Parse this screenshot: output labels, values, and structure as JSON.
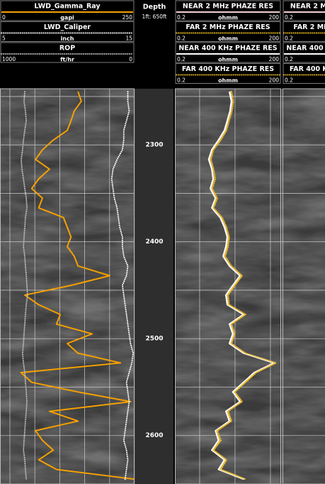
{
  "chart_data": [
    {
      "type": "line",
      "series": [
        {
          "name": "LWD_Gamma_Ray",
          "unit": "gapi",
          "xlim": [
            0,
            250
          ],
          "color": "#f5a000",
          "style": "solid",
          "values": [
            145,
            151,
            138,
            132,
            125,
            99,
            79,
            66,
            92,
            72,
            59,
            79,
            72,
            118,
            125,
            132,
            125,
            138,
            145,
            204,
            132,
            46,
            72,
            112,
            105,
            171,
            125,
            145,
            224,
            39,
            59,
            145,
            243,
            92,
            145,
            66,
            79,
            99,
            72,
            105,
            250
          ]
        },
        {
          "name": "LWD_Caliper",
          "unit": "inch",
          "xlim": [
            5,
            15
          ],
          "color": "#ffffff",
          "style": "dotted",
          "values": [
            14.5,
            14.5,
            14.6,
            14.4,
            14.2,
            14.2,
            14.1,
            13.7,
            13.4,
            13.3,
            13.4,
            13.5,
            13.7,
            13.8,
            13.9,
            14.1,
            14.1,
            14.2,
            14.5,
            14.4,
            14.1,
            14.2,
            14.3,
            14.4,
            14.5,
            14.6,
            14.7,
            14.9,
            14.8,
            14.6,
            14.4,
            14.5,
            14.6,
            14.5,
            14.4,
            14.3,
            14.2,
            14.4,
            14.5,
            14.4,
            14.3
          ]
        },
        {
          "name": "ROP",
          "unit": "ft/hr",
          "xlim": [
            1000,
            0
          ],
          "color": "#bfbfbf",
          "style": "dotted",
          "values": [
            816,
            821,
            811,
            805,
            816,
            826,
            832,
            842,
            837,
            826,
            816,
            805,
            800,
            811,
            816,
            821,
            826,
            816,
            811,
            805,
            800,
            795,
            805,
            811,
            816,
            821,
            826,
            832,
            826,
            816,
            811,
            805,
            800,
            805,
            811,
            816,
            821,
            826,
            816,
            811,
            805
          ]
        }
      ],
      "xticks": [
        0,
        50,
        100,
        150,
        200,
        250
      ]
    },
    {
      "type": "depth-axis",
      "title": "Depth",
      "subtitle": "1ft: 650ft",
      "ylim": [
        2242,
        2650
      ],
      "yticks": [
        2300,
        2400,
        2500,
        2600
      ],
      "minor_yticks": [
        2250,
        2350,
        2450,
        2550
      ],
      "depths": [
        2245,
        2255,
        2265,
        2275,
        2285,
        2295,
        2305,
        2315,
        2325,
        2335,
        2345,
        2355,
        2365,
        2375,
        2385,
        2395,
        2405,
        2415,
        2425,
        2435,
        2445,
        2455,
        2465,
        2475,
        2485,
        2495,
        2505,
        2515,
        2525,
        2535,
        2545,
        2555,
        2565,
        2575,
        2585,
        2595,
        2605,
        2615,
        2625,
        2635,
        2645
      ]
    },
    {
      "type": "line",
      "log_x": true,
      "xlim": [
        0.2,
        200
      ],
      "xgrid": [
        1,
        10,
        100
      ],
      "series": [
        {
          "name": "NEAR 2 MHz PHAZE RES",
          "unit": "ohmm",
          "color": "#f2d0d0",
          "style": "solid",
          "values": [
            7.3,
            8.3,
            7.6,
            6.3,
            5.3,
            3.6,
            2.3,
            1.9,
            2.3,
            2.5,
            2.1,
            2.9,
            2.3,
            4.0,
            5.3,
            6.3,
            5.8,
            4.8,
            7.3,
            14.5,
            9.1,
            5.8,
            6.3,
            18.2,
            7.3,
            9.1,
            7.3,
            18.2,
            132,
            36.4,
            18.2,
            9.1,
            14.5,
            5.8,
            7.3,
            2.9,
            3.6,
            2.3,
            5.3,
            3.6,
            18.2
          ]
        },
        {
          "name": "FAR 2 MHz PHAZE RES",
          "unit": "ohmm",
          "color": "#f0c020",
          "style": "dotted",
          "values": [
            8.0,
            9.1,
            8.3,
            6.9,
            5.8,
            4.0,
            2.5,
            2.1,
            2.5,
            2.8,
            2.3,
            3.2,
            2.5,
            4.4,
            5.8,
            6.9,
            6.4,
            5.3,
            8.0,
            16.0,
            10.0,
            6.4,
            6.9,
            20.0,
            8.0,
            10.0,
            8.0,
            20.0,
            145,
            40.0,
            20.0,
            10.0,
            16.0,
            6.4,
            8.0,
            3.2,
            4.0,
            2.5,
            5.8,
            4.0,
            20.0
          ]
        },
        {
          "name": "NEAR 400 KHz PHAZE RES",
          "unit": "ohmm",
          "color": "#ffffff",
          "style": "solid",
          "values": [
            6.9,
            7.9,
            7.2,
            6.0,
            5.0,
            3.4,
            2.2,
            1.8,
            2.2,
            2.4,
            2.0,
            2.8,
            2.2,
            3.8,
            5.0,
            6.0,
            5.5,
            4.6,
            6.9,
            13.8,
            8.6,
            5.5,
            6.0,
            17.3,
            6.9,
            8.6,
            6.9,
            17.3,
            125,
            34.6,
            17.3,
            8.6,
            13.8,
            5.5,
            6.9,
            2.8,
            3.4,
            2.2,
            5.0,
            3.4,
            17.3
          ]
        },
        {
          "name": "FAR 400 KHz PHAZE RES",
          "unit": "ohmm",
          "color": "#e8b830",
          "style": "dotted",
          "values": [
            7.7,
            8.7,
            8.0,
            6.6,
            5.6,
            3.8,
            2.4,
            2.0,
            2.4,
            2.6,
            2.2,
            3.0,
            2.4,
            4.2,
            5.6,
            6.6,
            6.1,
            5.0,
            7.7,
            15.2,
            9.6,
            6.1,
            6.6,
            19.1,
            7.7,
            9.6,
            7.7,
            19.1,
            139,
            38.2,
            19.1,
            9.6,
            15.2,
            6.1,
            7.7,
            3.0,
            3.8,
            2.4,
            5.6,
            3.8,
            19.1
          ]
        }
      ]
    }
  ],
  "clipped_track": {
    "xlim": [
      0.2,
      200
    ],
    "curves": [
      {
        "name": "NEAR 2 MHz PHAZE RES",
        "unit": "ohmm",
        "color": "#f2d0d0",
        "style": "solid"
      },
      {
        "name": "FAR 2 MHz PHAZE RES",
        "unit": "ohmm",
        "color": "#f0c020",
        "style": "dotted"
      },
      {
        "name": "NEAR 400 KHz PHAZE RES",
        "unit": "ohmm",
        "color": "#ffffff",
        "style": "solid"
      },
      {
        "name": "FAR 400 KHz PHAZE RES",
        "unit": "ohmm",
        "color": "#e8b830",
        "style": "dotted"
      }
    ]
  }
}
